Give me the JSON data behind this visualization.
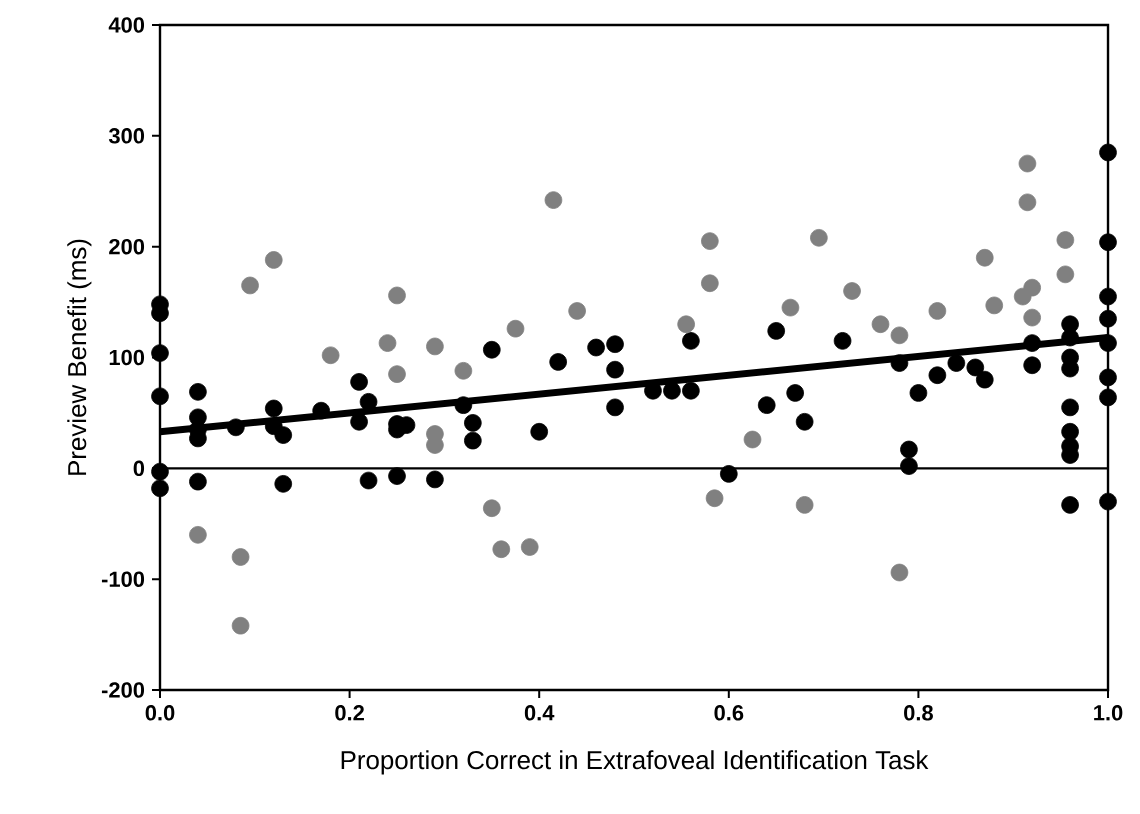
{
  "chart_data": {
    "type": "scatter",
    "xlabel": "Proportion Correct in Extrafoveal Identification Task",
    "ylabel": "Preview Benefit (ms)",
    "xlim": [
      0,
      1
    ],
    "ylim": [
      -200,
      400
    ],
    "xticks": [
      {
        "value": 0,
        "label": "0.0"
      },
      {
        "value": 0.2,
        "label": "0.2"
      },
      {
        "value": 0.4,
        "label": "0.4"
      },
      {
        "value": 0.6,
        "label": "0.6"
      },
      {
        "value": 0.8,
        "label": "0.8"
      },
      {
        "value": 1,
        "label": "1.0"
      }
    ],
    "yticks": [
      -200,
      -100,
      0,
      100,
      200,
      300,
      400
    ],
    "marker": "circle",
    "grid": false,
    "series": [
      {
        "color": "#000000",
        "x": [
          0,
          0,
          0,
          0,
          0,
          0,
          0.04,
          0.04,
          0.04,
          0.04,
          0.04,
          0.08,
          0.12,
          0.12,
          0.13,
          0.13,
          0.17,
          0.21,
          0.21,
          0.22,
          0.22,
          0.25,
          0.25,
          0.25,
          0.26,
          0.29,
          0.32,
          0.33,
          0.33,
          0.35,
          0.4,
          0.42,
          0.46,
          0.48,
          0.48,
          0.48,
          0.52,
          0.54,
          0.56,
          0.56,
          0.6,
          0.64,
          0.65,
          0.67,
          0.68,
          0.72,
          0.78,
          0.79,
          0.79,
          0.8,
          0.82,
          0.84,
          0.86,
          0.87,
          0.92,
          0.92,
          0.96,
          0.96,
          0.96,
          0.96,
          0.96,
          0.96,
          0.96,
          0.96,
          0.96,
          1,
          1,
          1,
          1,
          1,
          1,
          1,
          1
        ],
        "values": [
          148,
          140,
          104,
          65,
          -3,
          -18,
          69,
          46,
          35,
          27,
          -12,
          37,
          54,
          38,
          30,
          -14,
          52,
          78,
          42,
          60,
          -11,
          40,
          35,
          -7,
          39,
          -10,
          57,
          41,
          25,
          107,
          33,
          96,
          109,
          112,
          89,
          55,
          70,
          70,
          70,
          115,
          -5,
          57,
          124,
          68,
          42,
          115,
          95,
          17,
          2,
          68,
          84,
          95,
          91,
          80,
          113,
          93,
          130,
          118,
          100,
          90,
          55,
          33,
          20,
          12,
          -33,
          285,
          204,
          155,
          135,
          113,
          82,
          64,
          -30
        ]
      },
      {
        "color": "#808080",
        "x": [
          0.04,
          0.085,
          0.085,
          0.095,
          0.12,
          0.18,
          0.24,
          0.25,
          0.25,
          0.29,
          0.29,
          0.29,
          0.32,
          0.35,
          0.36,
          0.375,
          0.39,
          0.415,
          0.44,
          0.555,
          0.58,
          0.58,
          0.585,
          0.625,
          0.665,
          0.68,
          0.695,
          0.73,
          0.76,
          0.78,
          0.78,
          0.82,
          0.87,
          0.88,
          0.915,
          0.915,
          0.92,
          0.92,
          0.91,
          0.955,
          0.955
        ],
        "values": [
          -60,
          -80,
          -142,
          165,
          188,
          102,
          113,
          156,
          85,
          110,
          31,
          21,
          88,
          -36,
          -73,
          126,
          -71,
          242,
          142,
          130,
          205,
          167,
          -27,
          26,
          145,
          -33,
          208,
          160,
          130,
          120,
          -94,
          142,
          190,
          147,
          275,
          240,
          163,
          136,
          155,
          206,
          175
        ]
      },
      {
        "type": "line",
        "color": "#000000",
        "marker": "none",
        "x": [
          0,
          1
        ],
        "values": [
          33,
          118
        ]
      }
    ],
    "ref_lines": [
      {
        "axis": "y",
        "value": 0,
        "color": "#000000"
      }
    ]
  }
}
